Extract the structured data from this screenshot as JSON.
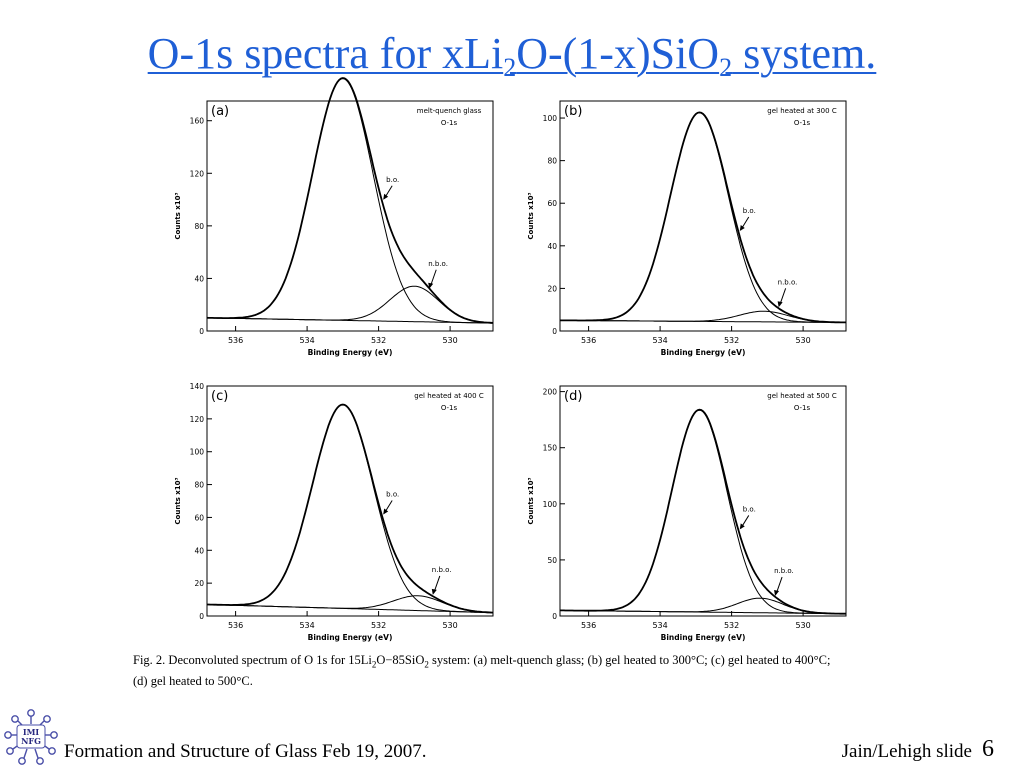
{
  "title": {
    "prefix": "O-1s spectra for xLi",
    "sub1": "2",
    "mid": "O-(1-x)SiO",
    "sub2": "2",
    "suffix": " system."
  },
  "caption": {
    "part1": "Fig. 2. Deconvoluted spectrum of O 1s for 15Li",
    "sub1": "2",
    "part2": "O−85SiO",
    "sub2": "2",
    "part3": " system: (a) melt-quench glass; (b) gel heated to 300°C; (c) gel heated to 400°C;",
    "line2": "(d) gel heated to 500°C."
  },
  "footer": {
    "left": "Formation and Structure of Glass Feb 19, 2007.",
    "right": "Jain/Lehigh slide",
    "slide_number": "6"
  },
  "logo": {
    "line1": "IMI",
    "line2": "NFG"
  },
  "chart_data": [
    {
      "type": "line",
      "panel_label": "(a)",
      "annotation": [
        "melt-quench glass",
        "O-1s"
      ],
      "xlabel": "Binding Energy (eV)",
      "ylabel": "Counts x10³",
      "xlim": [
        536.8,
        528.8
      ],
      "ylim": [
        0,
        175
      ],
      "xticks": [
        536,
        534,
        532,
        530
      ],
      "yticks": [
        0,
        40,
        80,
        120,
        160
      ],
      "bo_label": "b.o.",
      "nbo_label": "n.b.o.",
      "baseline": [
        10,
        6
      ],
      "bo_peak": {
        "center": 533.0,
        "height": 184,
        "fwhm": 2.0
      },
      "nbo_peak": {
        "center": 531.0,
        "height": 27,
        "fwhm": 1.6
      }
    },
    {
      "type": "line",
      "panel_label": "(b)",
      "annotation": [
        "gel heated at 300 C",
        "O-1s"
      ],
      "xlabel": "Binding Energy (eV)",
      "ylabel": "Counts x10³",
      "xlim": [
        536.8,
        528.8
      ],
      "ylim": [
        0,
        108
      ],
      "xticks": [
        536,
        534,
        532,
        530
      ],
      "yticks": [
        0,
        20,
        40,
        60,
        80,
        100
      ],
      "bo_label": "b.o.",
      "nbo_label": "n.b.o.",
      "baseline": [
        5,
        4
      ],
      "bo_peak": {
        "center": 532.9,
        "height": 98,
        "fwhm": 1.9
      },
      "nbo_peak": {
        "center": 531.1,
        "height": 5,
        "fwhm": 1.6
      }
    },
    {
      "type": "line",
      "panel_label": "(c)",
      "annotation": [
        "gel heated at 400 C",
        "O-1s"
      ],
      "xlabel": "Binding Energy (eV)",
      "ylabel": "Counts x10³",
      "xlim": [
        536.8,
        528.8
      ],
      "ylim": [
        0,
        140
      ],
      "xticks": [
        536,
        534,
        532,
        530
      ],
      "yticks": [
        0,
        20,
        40,
        60,
        80,
        100,
        120,
        140
      ],
      "bo_label": "b.o.",
      "nbo_label": "n.b.o.",
      "baseline": [
        7,
        2
      ],
      "bo_peak": {
        "center": 533.0,
        "height": 124,
        "fwhm": 2.0
      },
      "nbo_peak": {
        "center": 530.9,
        "height": 9,
        "fwhm": 1.6
      }
    },
    {
      "type": "line",
      "panel_label": "(d)",
      "annotation": [
        "gel heated at 500 C",
        "O-1s"
      ],
      "xlabel": "Binding Energy (eV)",
      "ylabel": "Counts x10³",
      "xlim": [
        536.8,
        528.8
      ],
      "ylim": [
        0,
        205
      ],
      "xticks": [
        536,
        534,
        532,
        530
      ],
      "yticks": [
        0,
        50,
        100,
        150,
        200
      ],
      "bo_label": "b.o.",
      "nbo_label": "n.b.o.",
      "baseline": [
        5,
        2
      ],
      "bo_peak": {
        "center": 532.9,
        "height": 180,
        "fwhm": 1.8
      },
      "nbo_peak": {
        "center": 531.2,
        "height": 13,
        "fwhm": 1.5
      }
    }
  ]
}
